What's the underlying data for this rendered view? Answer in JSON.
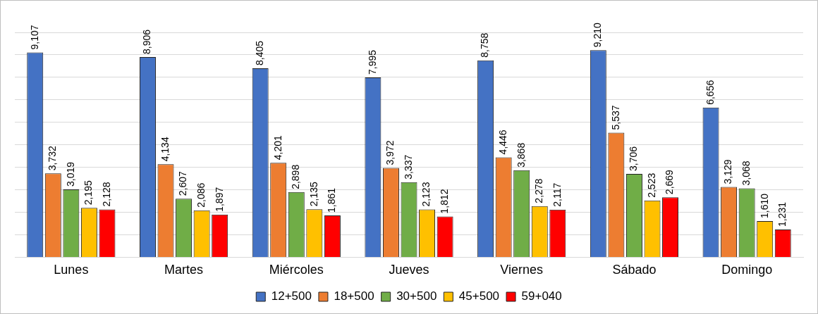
{
  "chart_data": {
    "type": "bar",
    "categories": [
      "Lunes",
      "Martes",
      "Miércoles",
      "Jueves",
      "Viernes",
      "Sábado",
      "Domingo"
    ],
    "series": [
      {
        "name": "12+500",
        "color": "#4472c4",
        "values": [
          9107,
          8906,
          8405,
          7995,
          8758,
          9210,
          6656
        ],
        "value_labels": [
          "9,107",
          "8,906",
          "8,405",
          "7,995",
          "8,758",
          "9,210",
          "6,656"
        ]
      },
      {
        "name": "18+500",
        "color": "#ed7d31",
        "values": [
          3732,
          4134,
          4201,
          3972,
          4446,
          5537,
          3129
        ],
        "value_labels": [
          "3,732",
          "4,134",
          "4,201",
          "3,972",
          "4,446",
          "5,537",
          "3,129"
        ]
      },
      {
        "name": "30+500",
        "color": "#70ad47",
        "values": [
          3019,
          2607,
          2898,
          3337,
          3868,
          3706,
          3068
        ],
        "value_labels": [
          "3,019",
          "2,607",
          "2,898",
          "3,337",
          "3,868",
          "3,706",
          "3,068"
        ]
      },
      {
        "name": "45+500",
        "color": "#ffc000",
        "values": [
          2195,
          2086,
          2135,
          2123,
          2278,
          2523,
          1610
        ],
        "value_labels": [
          "2,195",
          "2,086",
          "2,135",
          "2,123",
          "2,278",
          "2,523",
          "1,610"
        ]
      },
      {
        "name": "59+040",
        "color": "#ff0000",
        "values": [
          2128,
          1897,
          1861,
          1812,
          2117,
          2669,
          1231
        ],
        "value_labels": [
          "2,128",
          "1,897",
          "1,861",
          "1,812",
          "2,117",
          "2,669",
          "1,231"
        ]
      }
    ],
    "tick_labels": "x",
    "grid": "y",
    "legend": "bottom"
  }
}
